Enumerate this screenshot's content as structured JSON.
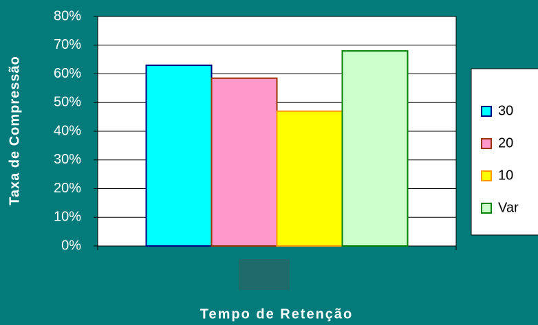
{
  "chart_data": {
    "type": "bar",
    "x_label": "Tempo de Retenção",
    "y_label": "Taxa de Compressão",
    "categories": [
      null
    ],
    "series": [
      {
        "name": "30",
        "color": "#00ffff",
        "edge": "#000080",
        "values": [
          63
        ]
      },
      {
        "name": "20",
        "color": "#ff99cc",
        "edge": "#993300",
        "values": [
          58.5
        ]
      },
      {
        "name": "10",
        "color": "#ffff00",
        "edge": "#ff9900",
        "values": [
          47
        ]
      },
      {
        "name": "Var",
        "color": "#ccffcc",
        "edge": "#008000",
        "values": [
          68
        ]
      }
    ],
    "ylim": [
      0,
      80
    ],
    "yticks": [
      {
        "value": 0,
        "label": "0%"
      },
      {
        "value": 10,
        "label": "10%"
      },
      {
        "value": 20,
        "label": "20%"
      },
      {
        "value": 30,
        "label": "30%"
      },
      {
        "value": 40,
        "label": "40%"
      },
      {
        "value": 50,
        "label": "50%"
      },
      {
        "value": 60,
        "label": "60%"
      },
      {
        "value": 70,
        "label": "70%"
      },
      {
        "value": 80,
        "label": "80%"
      }
    ],
    "grid": true,
    "legend": "right"
  }
}
